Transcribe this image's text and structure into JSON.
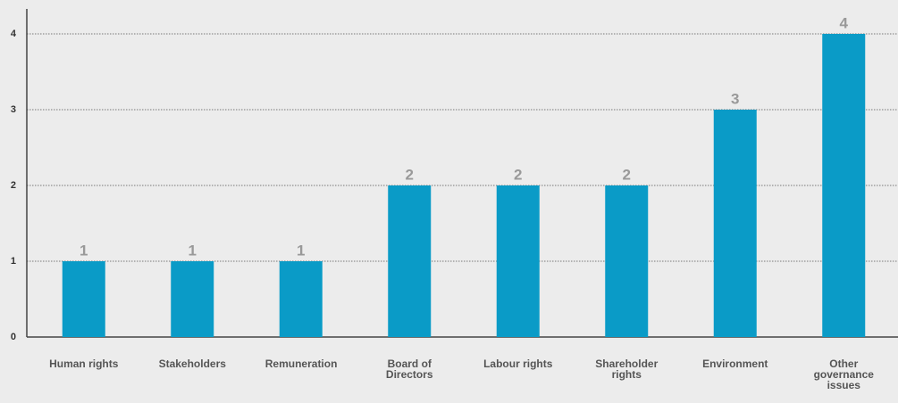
{
  "chart_data": {
    "type": "bar",
    "categories": [
      "Human rights",
      "Stakeholders",
      "Remuneration",
      "Board of Directors",
      "Labour rights",
      "Shareholder rights",
      "Environment",
      "Other governance issues"
    ],
    "values": [
      1,
      1,
      1,
      2,
      2,
      2,
      3,
      4
    ],
    "color": "#0a9bc7",
    "ylim": [
      0,
      4
    ],
    "yticks": [
      0,
      1,
      2,
      3,
      4
    ],
    "grid": true
  }
}
